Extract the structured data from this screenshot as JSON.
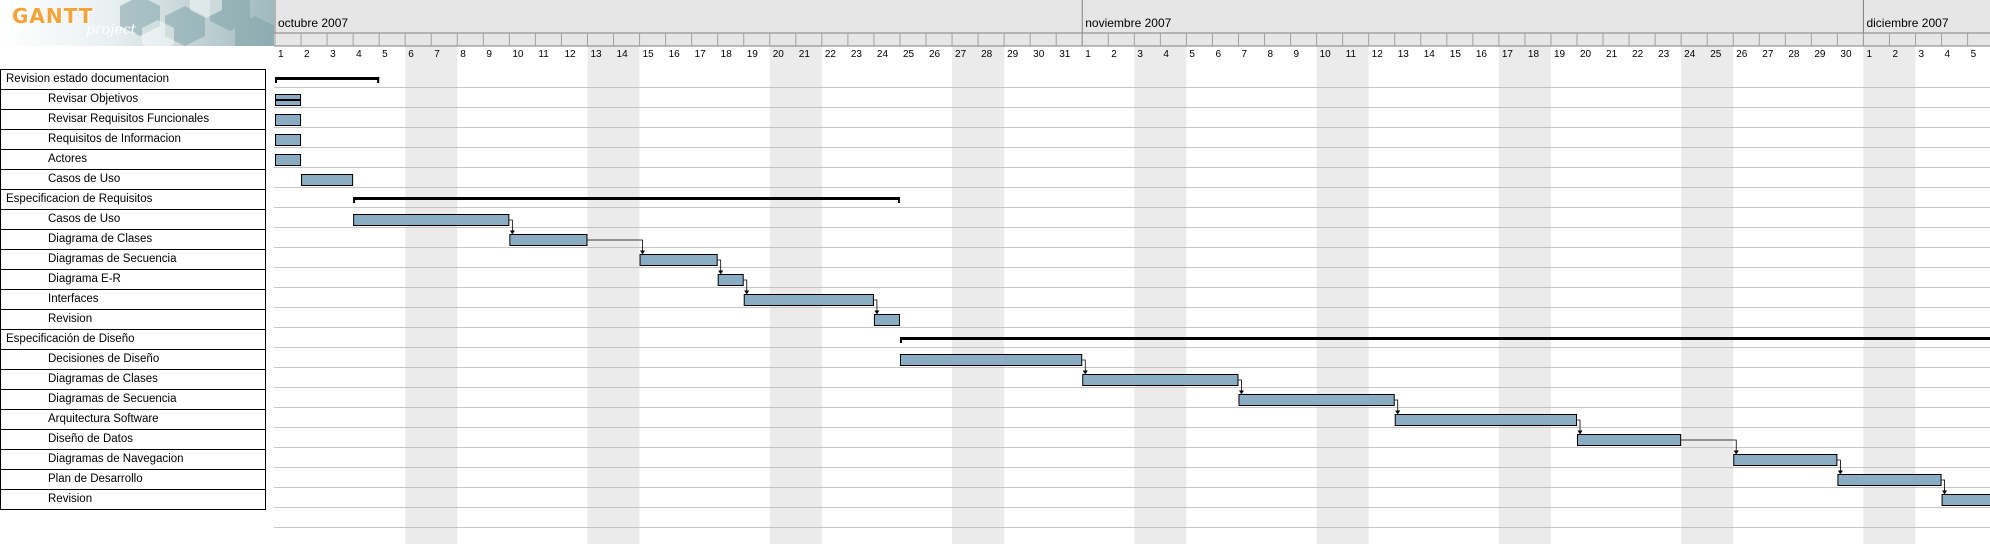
{
  "logo": {
    "brand": "GANTT",
    "sub": "project"
  },
  "timeline": {
    "months": [
      {
        "label": "octubre 2007",
        "days": 31
      },
      {
        "label": "noviembre 2007",
        "days": 30
      },
      {
        "label": "diciembre 2007",
        "days": 5
      }
    ],
    "weekend_start_days": [
      6,
      13,
      20,
      27,
      34,
      41,
      48,
      55,
      62
    ]
  },
  "colors": {
    "bar_fill": "#8aadc4",
    "summary": "#000000",
    "weekend": "#ebebeb",
    "header": "#e6e6e6"
  },
  "tasks": [
    {
      "name": "Revision estado documentacion",
      "level": 0,
      "summary": true,
      "start": 1,
      "end": 4
    },
    {
      "name": "Revisar Objetivos",
      "level": 1,
      "start": 1,
      "end": 1,
      "progress_line": true
    },
    {
      "name": "Revisar Requisitos Funcionales",
      "level": 1,
      "start": 1,
      "end": 1
    },
    {
      "name": "Requisitos de Informacion",
      "level": 1,
      "start": 1,
      "end": 1
    },
    {
      "name": "Actores",
      "level": 1,
      "start": 1,
      "end": 1
    },
    {
      "name": "Casos de Uso",
      "level": 1,
      "start": 2,
      "end": 3
    },
    {
      "name": "Especificacion de Requisitos",
      "level": 0,
      "summary": true,
      "start": 4,
      "end": 24
    },
    {
      "name": "Casos de Uso",
      "level": 1,
      "start": 4,
      "end": 9
    },
    {
      "name": "Diagrama de Clases",
      "level": 1,
      "start": 10,
      "end": 12
    },
    {
      "name": "Diagramas de Secuencia",
      "level": 1,
      "start": 15,
      "end": 17
    },
    {
      "name": "Diagrama E-R",
      "level": 1,
      "start": 18,
      "end": 18
    },
    {
      "name": "Interfaces",
      "level": 1,
      "start": 19,
      "end": 23
    },
    {
      "name": "Revision",
      "level": 1,
      "start": 24,
      "end": 24
    },
    {
      "name": "Especificación de Diseño",
      "level": 0,
      "summary": true,
      "start": 25,
      "end": 66
    },
    {
      "name": "Decisiones de Diseño",
      "level": 1,
      "start": 25,
      "end": 31
    },
    {
      "name": "Diagramas de Clases",
      "level": 1,
      "start": 32,
      "end": 37
    },
    {
      "name": "Diagramas de Secuencia",
      "level": 1,
      "start": 38,
      "end": 43
    },
    {
      "name": "Arquitectura Software",
      "level": 1,
      "start": 44,
      "end": 50
    },
    {
      "name": "Diseño de Datos",
      "level": 1,
      "start": 51,
      "end": 54
    },
    {
      "name": "Diagramas de Navegacion",
      "level": 1,
      "start": 57,
      "end": 60
    },
    {
      "name": "Plan de Desarrollo",
      "level": 1,
      "start": 61,
      "end": 64
    },
    {
      "name": "Revision",
      "level": 1,
      "start": 65,
      "end": 66
    }
  ],
  "dependencies": [
    [
      7,
      8
    ],
    [
      8,
      9
    ],
    [
      9,
      10
    ],
    [
      10,
      11
    ],
    [
      11,
      12
    ],
    [
      14,
      15
    ],
    [
      15,
      16
    ],
    [
      16,
      17
    ],
    [
      17,
      18
    ],
    [
      18,
      19
    ],
    [
      19,
      20
    ],
    [
      20,
      21
    ]
  ]
}
